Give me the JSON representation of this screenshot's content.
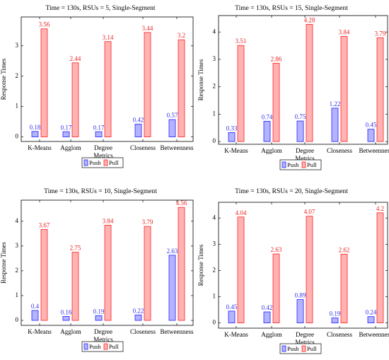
{
  "colors": {
    "push_fill": "#b3b3ff",
    "push_stroke": "#2222ff",
    "pull_fill": "#ffb3b3",
    "pull_stroke": "#ff2222",
    "push_label": "#3333ee",
    "pull_label": "#ee2222"
  },
  "chart_data": [
    {
      "type": "bar",
      "title": "Time = 130s, RSUs = 5, Single-Segment",
      "ylabel": "Response Times",
      "xlabel": "",
      "categories": [
        "K-Means",
        "Agglom",
        "Degree Metrics",
        "Closeness",
        "Betweenness"
      ],
      "ylim": [
        -0.15,
        3.95
      ],
      "yticks": [
        "0",
        "1",
        "2",
        "3"
      ],
      "series": [
        {
          "name": "Push",
          "values": [
            0.18,
            0.17,
            0.17,
            0.42,
            0.57
          ]
        },
        {
          "name": "Pull",
          "values": [
            3.56,
            2.44,
            3.14,
            3.44,
            3.2
          ]
        }
      ],
      "value_labels": {
        "Push": [
          "0.18",
          "0.17",
          "0.17",
          "0.42",
          "0.57"
        ],
        "Pull": [
          "3.56",
          "2.44",
          "3.14",
          "3.44",
          "3.2"
        ]
      },
      "legend": "bottom-center"
    },
    {
      "type": "bar",
      "title": "Time = 130s, RSUs = 15, Single-Segment",
      "ylabel": "Response Times",
      "xlabel": "",
      "categories": [
        "K-Means",
        "Agglom",
        "Degree Metrics",
        "Closeness",
        "Betweenness"
      ],
      "ylim": [
        -0.1,
        4.6
      ],
      "yticks": [
        "0",
        "1",
        "2",
        "3",
        "4"
      ],
      "series": [
        {
          "name": "Push",
          "values": [
            0.33,
            0.74,
            0.75,
            1.22,
            0.45
          ]
        },
        {
          "name": "Pull",
          "values": [
            3.51,
            2.86,
            4.28,
            3.84,
            3.79
          ]
        }
      ],
      "value_labels": {
        "Push": [
          "0.33",
          "0.74",
          "0.75",
          "1.22",
          "0.45"
        ],
        "Pull": [
          "3.51",
          "2.86",
          "4.28",
          "3.84",
          "3.79"
        ]
      },
      "legend": "bottom-center"
    },
    {
      "type": "bar",
      "title": "Time = 130s, RSUs = 10, Single-Segment",
      "ylabel": "Response Times",
      "xlabel": "",
      "categories": [
        "K-Means",
        "Agglom",
        "Degree Metrics",
        "Closeness",
        "Betweenness"
      ],
      "ylim": [
        -0.2,
        4.85
      ],
      "yticks": [
        "0",
        "1",
        "2",
        "3",
        "4"
      ],
      "series": [
        {
          "name": "Push",
          "values": [
            0.4,
            0.16,
            0.19,
            0.22,
            2.63
          ]
        },
        {
          "name": "Pull",
          "values": [
            3.67,
            2.75,
            3.84,
            3.79,
            4.56
          ]
        }
      ],
      "value_labels": {
        "Push": [
          "0.4",
          "0.16",
          "0.19",
          "0.22",
          "2.63"
        ],
        "Pull": [
          "3.67",
          "2.75",
          "3.84",
          "3.79",
          "4.56"
        ]
      },
      "legend": "bottom-center"
    },
    {
      "type": "bar",
      "title": "Time = 130s, RSUs = 20, Single-Segment",
      "ylabel": "Response Times",
      "xlabel": "",
      "categories": [
        "K-Means",
        "Agglom",
        "Degree Metrics",
        "Closeness",
        "Betweenness"
      ],
      "ylim": [
        -0.2,
        4.6
      ],
      "yticks": [
        "0",
        "1",
        "2",
        "3",
        "4"
      ],
      "series": [
        {
          "name": "Push",
          "values": [
            0.45,
            0.42,
            0.89,
            0.19,
            0.24
          ]
        },
        {
          "name": "Pull",
          "values": [
            4.04,
            2.63,
            4.07,
            2.62,
            4.2
          ]
        }
      ],
      "value_labels": {
        "Push": [
          "0.45",
          "0.42",
          "0.89",
          "0.19",
          "0.24"
        ],
        "Pull": [
          "4.04",
          "2.63",
          "4.07",
          "2.62",
          "4.2"
        ]
      },
      "legend": "bottom-center"
    }
  ]
}
